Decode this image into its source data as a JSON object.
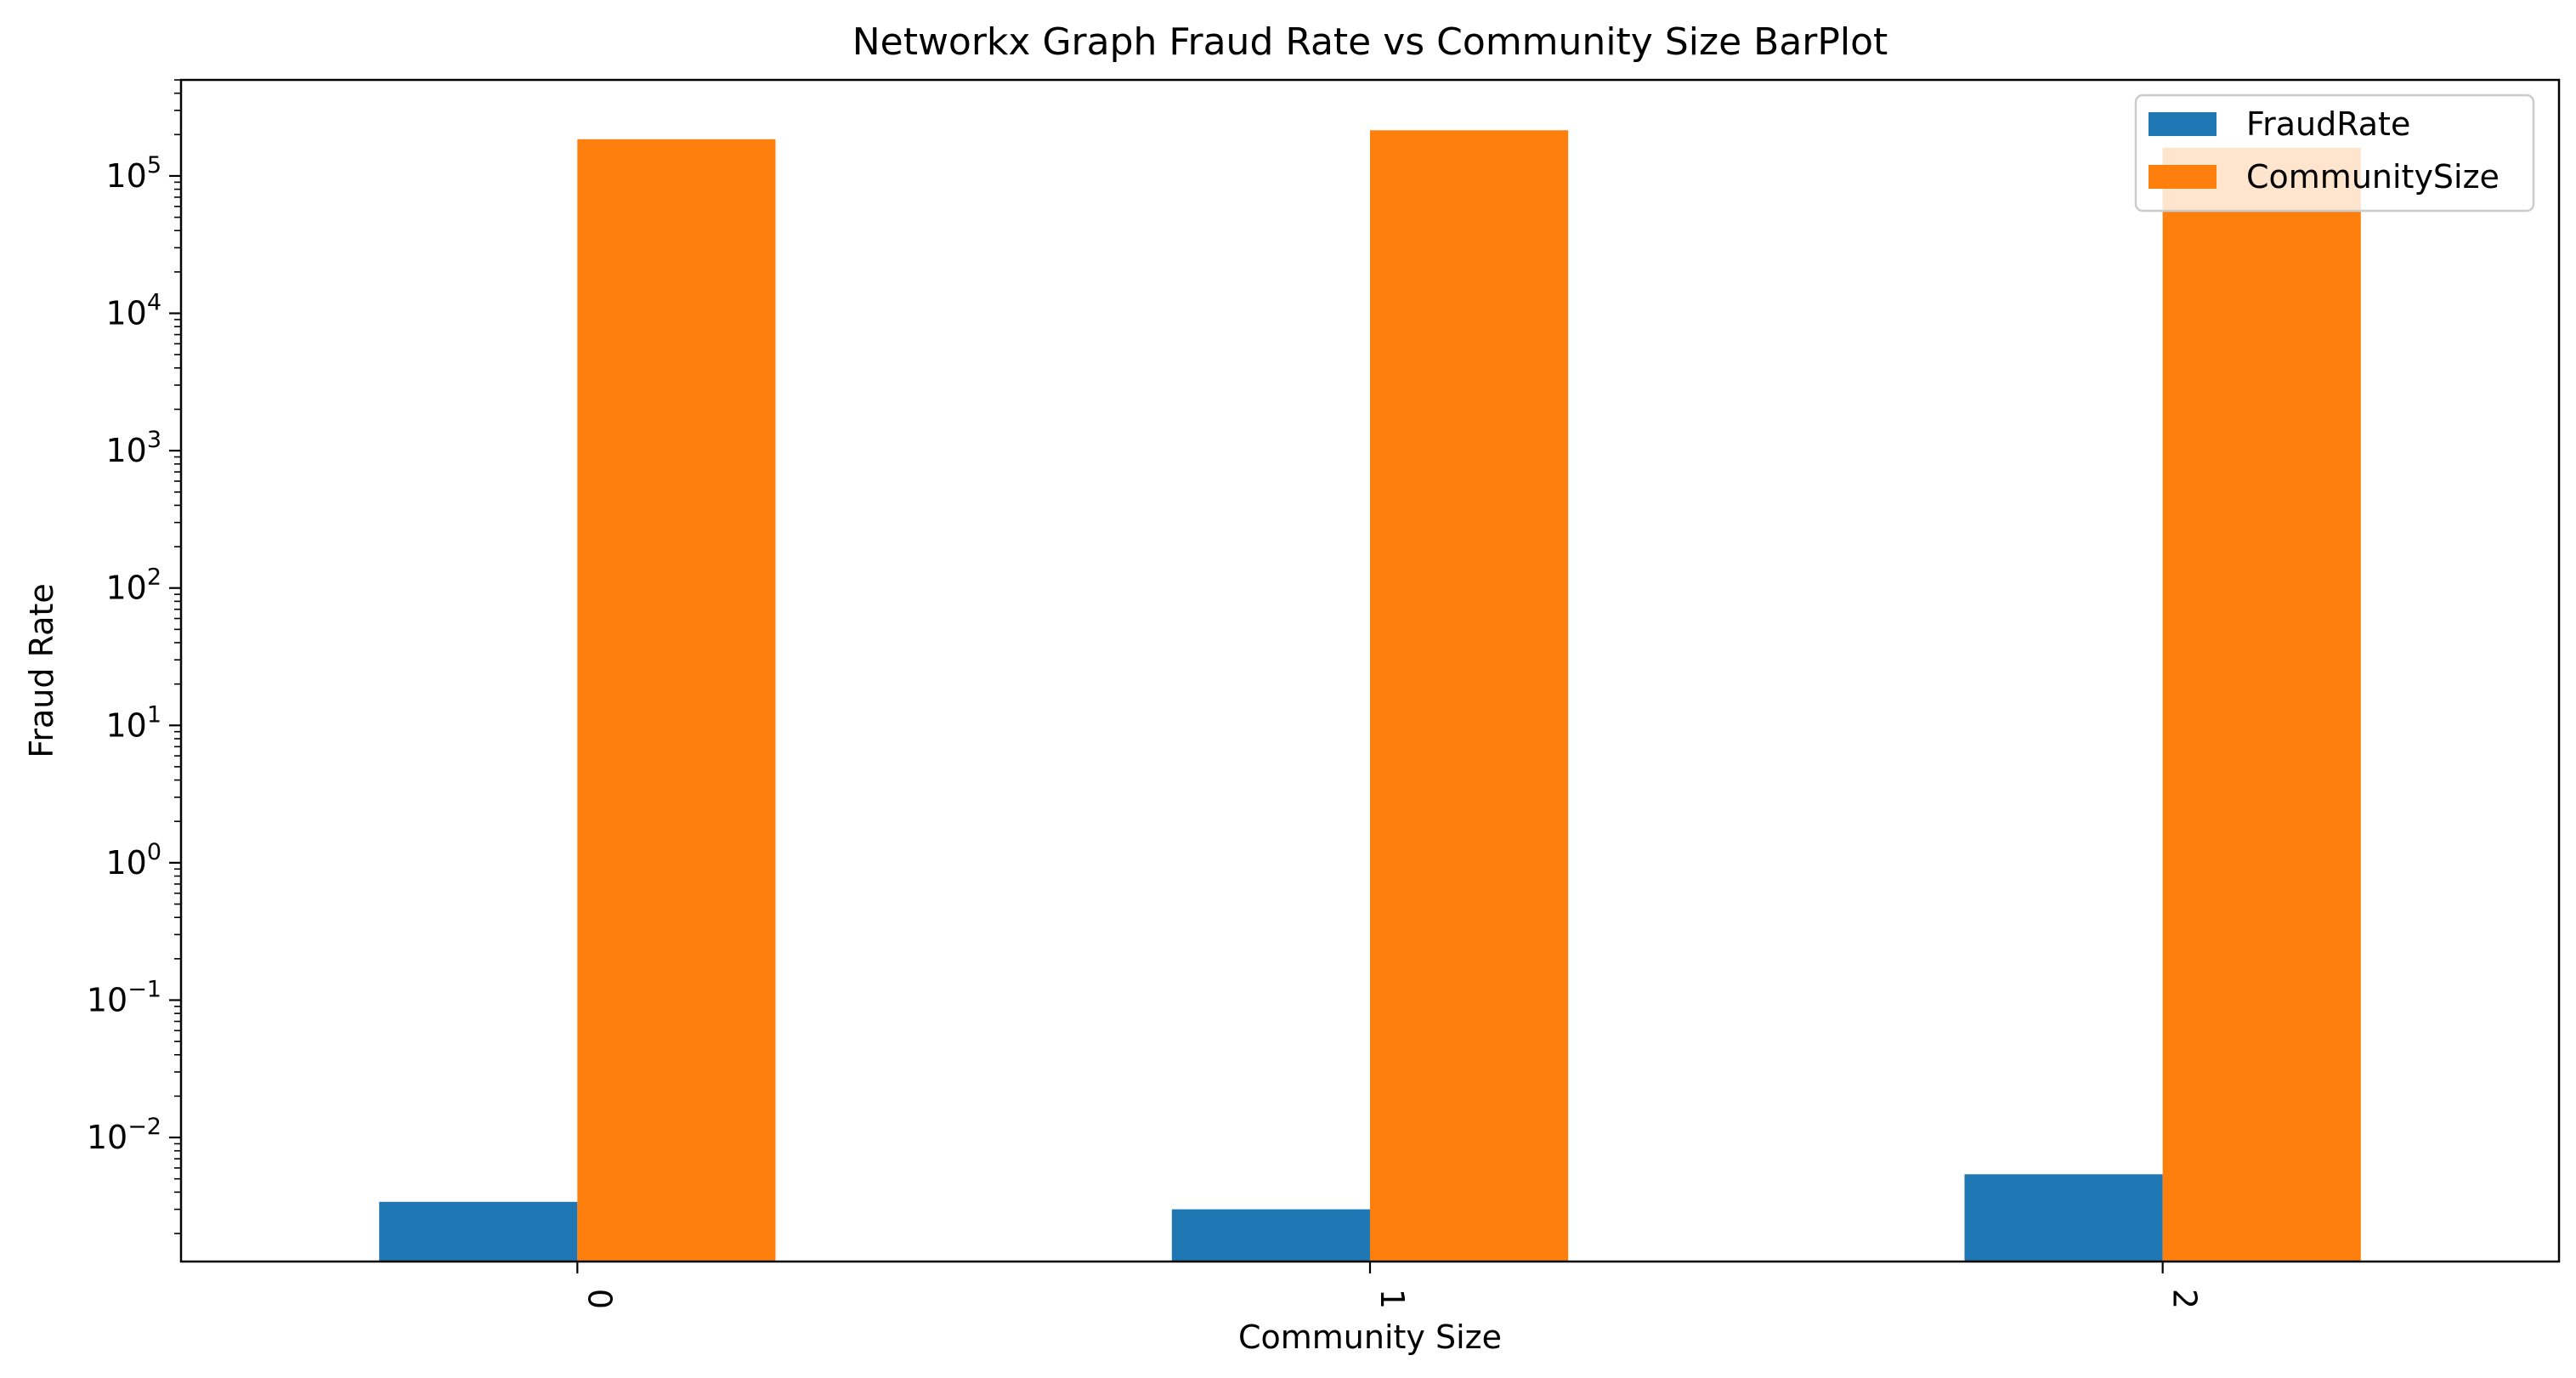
{
  "chart_data": {
    "type": "bar",
    "title": "Networkx Graph Fraud Rate vs Community Size BarPlot",
    "xlabel": "Community Size",
    "ylabel": "Fraud Rate",
    "yscale": "log",
    "ylim": [
      0.00125,
      500000
    ],
    "categories": [
      "0",
      "1",
      "2"
    ],
    "yticks": [
      {
        "exponent": "−2",
        "value": 0.01
      },
      {
        "exponent": "−1",
        "value": 0.1
      },
      {
        "exponent": "0",
        "value": 1
      },
      {
        "exponent": "1",
        "value": 10
      },
      {
        "exponent": "2",
        "value": 100
      },
      {
        "exponent": "3",
        "value": 1000
      },
      {
        "exponent": "4",
        "value": 10000
      },
      {
        "exponent": "5",
        "value": 100000
      }
    ],
    "tick_base": "10",
    "series": [
      {
        "name": "FraudRate",
        "color": "#1f77b4",
        "values": [
          0.0034,
          0.003,
          0.0054
        ]
      },
      {
        "name": "CommunitySize",
        "color": "#ff7f0e",
        "values": [
          185000,
          215000,
          160000
        ]
      }
    ],
    "legend_position": "top-right",
    "grid": false
  }
}
